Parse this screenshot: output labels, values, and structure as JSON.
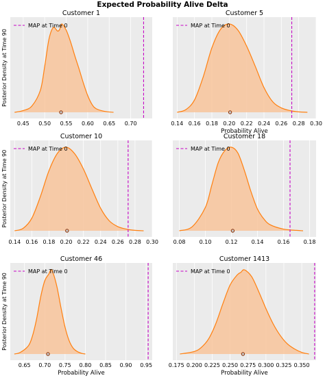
{
  "figure_title": "Expected Probability Alive Delta",
  "colors": {
    "kde_line": "#ff7f0e",
    "kde_fill": "#f8c49b",
    "map_line": "#c400c4",
    "panel_bg": "#ebebeb",
    "grid": "#ffffff",
    "marker_fill": "#c8c8c8",
    "marker_edge": "#8b2e00"
  },
  "chart_data": [
    {
      "type": "area",
      "title": "Customer 1",
      "xlabel": "",
      "ylabel": "Posterior Density at Time 90",
      "legend": {
        "label": "MAP at Time 0",
        "placement": "top-left"
      },
      "xlim": [
        0.42,
        0.75
      ],
      "xticks": [
        0.45,
        0.5,
        0.55,
        0.6,
        0.65,
        0.7
      ],
      "xticklabels": [
        "0.45",
        "0.50",
        "0.55",
        "0.60",
        "0.65",
        "0.70"
      ],
      "map_value": 0.73,
      "point_estimate": 0.538,
      "density": {
        "x": [
          0.43,
          0.45,
          0.47,
          0.49,
          0.5,
          0.51,
          0.52,
          0.53,
          0.535,
          0.54,
          0.55,
          0.56,
          0.57,
          0.58,
          0.59,
          0.6,
          0.61,
          0.62,
          0.64,
          0.66
        ],
        "y": [
          0.0,
          0.02,
          0.07,
          0.25,
          0.52,
          0.83,
          0.96,
          0.92,
          0.94,
          1.0,
          0.93,
          0.8,
          0.64,
          0.49,
          0.33,
          0.19,
          0.09,
          0.04,
          0.01,
          0.0
        ]
      }
    },
    {
      "type": "area",
      "title": "Customer 5",
      "xlabel": "Probability Alive",
      "ylabel": "",
      "legend": {
        "label": "MAP at Time 0",
        "placement": "top-left"
      },
      "xlim": [
        0.135,
        0.3
      ],
      "xticks": [
        0.14,
        0.16,
        0.18,
        0.2,
        0.22,
        0.24,
        0.26,
        0.28,
        0.3
      ],
      "xticklabels": [
        "0.14",
        "0.16",
        "0.18",
        "0.20",
        "0.22",
        "0.24",
        "0.26",
        "0.28",
        "0.30"
      ],
      "map_value": 0.272,
      "point_estimate": 0.201,
      "density": {
        "x": [
          0.14,
          0.15,
          0.16,
          0.17,
          0.18,
          0.19,
          0.2,
          0.21,
          0.22,
          0.23,
          0.24,
          0.25,
          0.26,
          0.27,
          0.28,
          0.29
        ],
        "y": [
          0.0,
          0.03,
          0.14,
          0.4,
          0.73,
          0.94,
          1.0,
          0.93,
          0.75,
          0.52,
          0.28,
          0.12,
          0.05,
          0.02,
          0.005,
          0.0
        ]
      }
    },
    {
      "type": "area",
      "title": "Customer 10",
      "xlabel": "",
      "ylabel": "Posterior Density at Time 90",
      "legend": {
        "label": "MAP at Time 0",
        "placement": "top-left"
      },
      "xlim": [
        0.135,
        0.3
      ],
      "xticks": [
        0.14,
        0.16,
        0.18,
        0.2,
        0.22,
        0.24,
        0.26,
        0.28,
        0.3
      ],
      "xticklabels": [
        "0.14",
        "0.16",
        "0.18",
        "0.20",
        "0.22",
        "0.24",
        "0.26",
        "0.28",
        "0.30"
      ],
      "map_value": 0.272,
      "point_estimate": 0.201,
      "density": {
        "x": [
          0.14,
          0.15,
          0.16,
          0.17,
          0.18,
          0.19,
          0.2,
          0.21,
          0.22,
          0.23,
          0.24,
          0.25,
          0.26,
          0.27,
          0.28,
          0.29
        ],
        "y": [
          0.0,
          0.03,
          0.15,
          0.41,
          0.72,
          0.93,
          1.0,
          0.92,
          0.74,
          0.5,
          0.27,
          0.12,
          0.05,
          0.02,
          0.005,
          0.0
        ]
      }
    },
    {
      "type": "area",
      "title": "Customer 18",
      "xlabel": "",
      "ylabel": "",
      "legend": {
        "label": "MAP at Time 0",
        "placement": "top-left"
      },
      "xlim": [
        0.075,
        0.185
      ],
      "xticks": [
        0.08,
        0.1,
        0.12,
        0.14,
        0.16,
        0.18
      ],
      "xticklabels": [
        "0.08",
        "0.10",
        "0.12",
        "0.14",
        "0.16",
        "0.18"
      ],
      "map_value": 0.165,
      "point_estimate": 0.121,
      "density": {
        "x": [
          0.08,
          0.09,
          0.1,
          0.105,
          0.11,
          0.115,
          0.12,
          0.125,
          0.13,
          0.135,
          0.14,
          0.145,
          0.15,
          0.16,
          0.17,
          0.175
        ],
        "y": [
          0.0,
          0.05,
          0.28,
          0.55,
          0.82,
          0.96,
          1.0,
          0.93,
          0.72,
          0.47,
          0.26,
          0.14,
          0.07,
          0.02,
          0.005,
          0.0
        ]
      }
    },
    {
      "type": "area",
      "title": "Customer 46",
      "xlabel": "Probability Alive",
      "ylabel": "Posterior Density at Time 90",
      "legend": {
        "label": "MAP at Time 0",
        "placement": "top-left"
      },
      "xlim": [
        0.615,
        0.965
      ],
      "xticks": [
        0.65,
        0.7,
        0.75,
        0.8,
        0.85,
        0.9,
        0.95
      ],
      "xticklabels": [
        "0.65",
        "0.70",
        "0.75",
        "0.80",
        "0.85",
        "0.90",
        "0.95"
      ],
      "map_value": 0.955,
      "point_estimate": 0.708,
      "density": {
        "x": [
          0.625,
          0.64,
          0.66,
          0.67,
          0.68,
          0.69,
          0.7,
          0.71,
          0.715,
          0.72,
          0.73,
          0.74,
          0.75,
          0.76,
          0.77,
          0.78,
          0.79,
          0.8
        ],
        "y": [
          0.0,
          0.02,
          0.1,
          0.22,
          0.42,
          0.68,
          0.87,
          0.95,
          1.0,
          0.97,
          0.8,
          0.55,
          0.32,
          0.16,
          0.07,
          0.03,
          0.01,
          0.0
        ]
      }
    },
    {
      "type": "area",
      "title": "Customer 1413",
      "xlabel": "Probability Alive",
      "ylabel": "",
      "legend": {
        "label": "MAP at Time 0",
        "placement": "top-left"
      },
      "xlim": [
        0.17,
        0.37
      ],
      "xticks": [
        0.175,
        0.2,
        0.225,
        0.25,
        0.275,
        0.3,
        0.325,
        0.35
      ],
      "xticklabels": [
        "0.175",
        "0.200",
        "0.225",
        "0.250",
        "0.275",
        "0.300",
        "0.325",
        "0.350"
      ],
      "map_value": 0.368,
      "point_estimate": 0.268,
      "density": {
        "x": [
          0.18,
          0.2,
          0.21,
          0.22,
          0.23,
          0.24,
          0.25,
          0.26,
          0.265,
          0.27,
          0.28,
          0.29,
          0.3,
          0.31,
          0.32,
          0.33,
          0.34,
          0.35,
          0.36
        ],
        "y": [
          0.0,
          0.03,
          0.08,
          0.18,
          0.36,
          0.6,
          0.82,
          0.94,
          0.97,
          1.0,
          0.92,
          0.74,
          0.54,
          0.36,
          0.22,
          0.12,
          0.06,
          0.02,
          0.0
        ]
      }
    }
  ]
}
